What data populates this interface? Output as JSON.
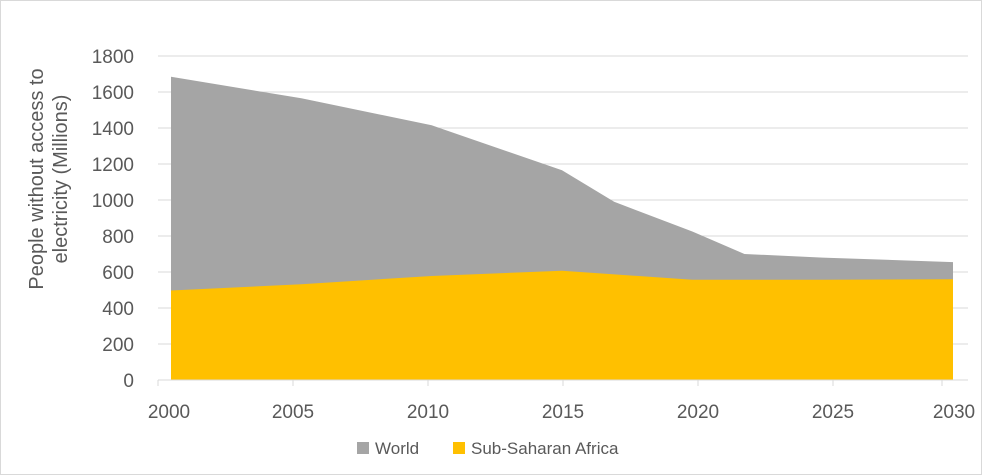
{
  "chart_data": {
    "type": "area",
    "title": "",
    "xlabel": "",
    "ylabel": "People without access to electricity (Millions)",
    "ylabel_lines": [
      "People without access to",
      "electricity (Millions)"
    ],
    "xlim": [
      2000,
      2030
    ],
    "ylim": [
      0,
      1800
    ],
    "x_ticks": [
      2000,
      2005,
      2010,
      2015,
      2020,
      2025,
      2030
    ],
    "y_ticks": [
      0,
      200,
      400,
      600,
      800,
      1000,
      1200,
      1400,
      1600,
      1800
    ],
    "grid": true,
    "legend_position": "bottom",
    "stacked": false,
    "series": [
      {
        "name": "World",
        "color": "#a5a5a5",
        "x": [
          2000,
          2005,
          2010,
          2015,
          2017,
          2020,
          2022,
          2025,
          2030
        ],
        "values": [
          1685,
          1565,
          1415,
          1165,
          990,
          825,
          700,
          680,
          655
        ]
      },
      {
        "name": "Sub-Saharan Africa",
        "color": "#ffc000",
        "x": [
          2000,
          2005,
          2010,
          2015,
          2020,
          2025,
          2030
        ],
        "values": [
          497,
          532,
          578,
          607,
          557,
          557,
          560
        ]
      }
    ]
  }
}
